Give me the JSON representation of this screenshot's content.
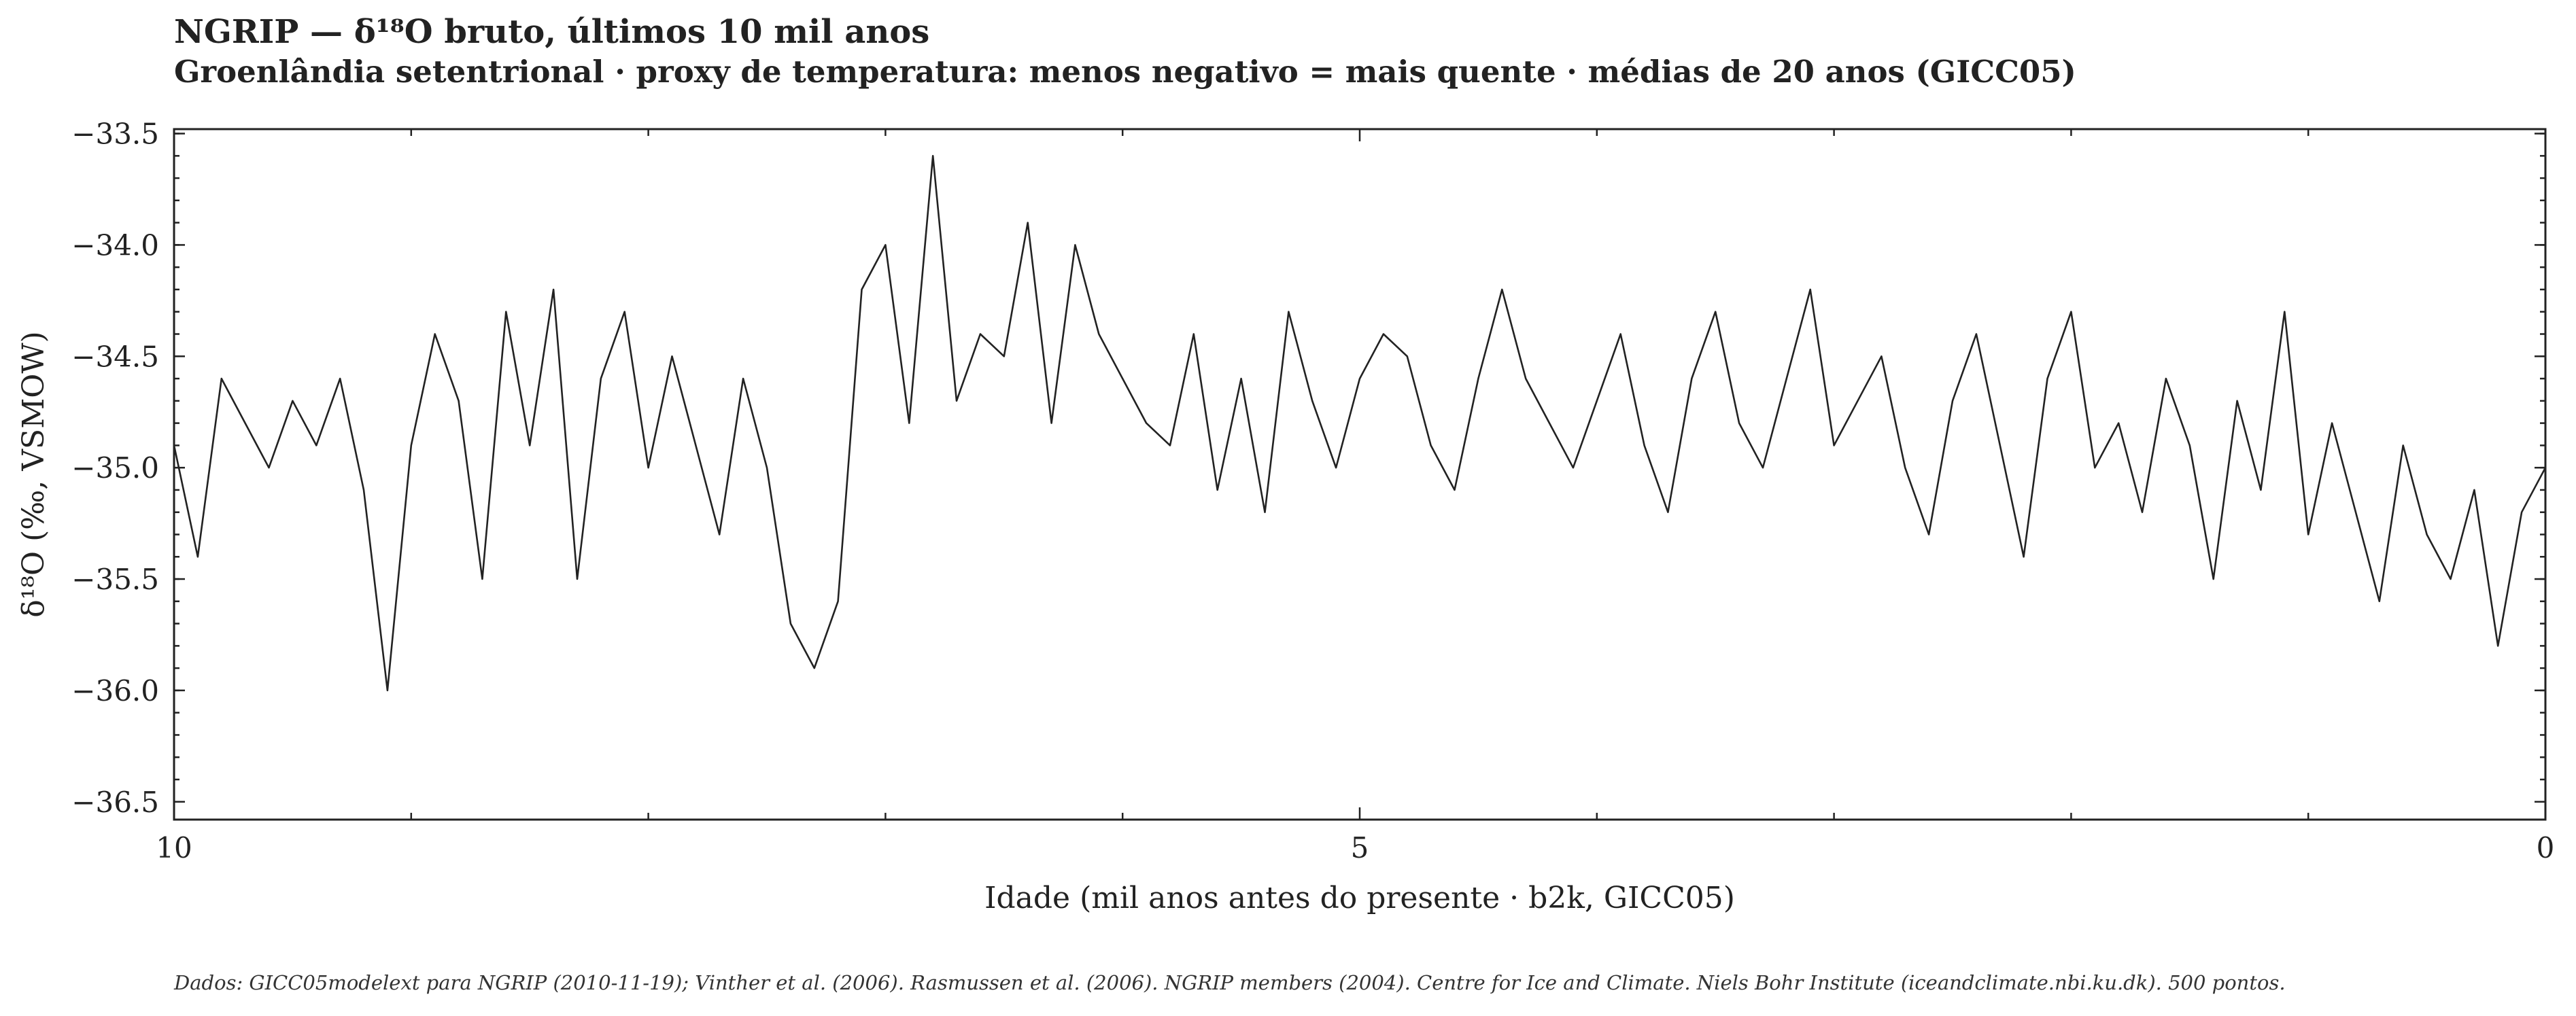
{
  "chart_data": {
    "type": "line",
    "title": "NGRIP — δ¹⁸O bruto, últimos 10 mil anos",
    "subtitle": "Groenlândia setentrional · proxy de temperatura: menos negativo = mais quente · médias de 20 anos (GICC05)",
    "xlabel": "Idade (mil anos antes do presente · b2k, GICC05)",
    "ylabel": "δ¹⁸O (‰, VSMOW)",
    "xlim": [
      10,
      0
    ],
    "ylim": [
      -36.58,
      -33.48
    ],
    "x_ticks": [
      10,
      5,
      0
    ],
    "x_tick_labels": [
      "10",
      "5",
      "0"
    ],
    "y_ticks": [
      -33.5,
      -34.0,
      -34.5,
      -35.0,
      -35.5,
      -36.0,
      -36.5
    ],
    "y_tick_labels": [
      "−33.5",
      "−34.0",
      "−34.5",
      "−35.0",
      "−35.5",
      "−36.0",
      "−36.5"
    ],
    "grid": false,
    "line_color": "#222222",
    "series": [
      {
        "x": [
          10.0,
          9.9,
          9.8,
          9.7,
          9.6,
          9.5,
          9.4,
          9.3,
          9.2,
          9.1,
          9.0,
          8.9,
          8.8,
          8.7,
          8.6,
          8.5,
          8.4,
          8.3,
          8.2,
          8.1,
          8.0,
          7.9,
          7.8,
          7.7,
          7.6,
          7.5,
          7.4,
          7.3,
          7.2,
          7.1,
          7.0,
          6.9,
          6.8,
          6.7,
          6.6,
          6.5,
          6.4,
          6.3,
          6.2,
          6.1,
          6.0,
          5.9,
          5.8,
          5.7,
          5.6,
          5.5,
          5.4,
          5.3,
          5.2,
          5.1,
          5.0,
          4.9,
          4.8,
          4.7,
          4.6,
          4.5,
          4.4,
          4.3,
          4.2,
          4.1,
          4.0,
          3.9,
          3.8,
          3.7,
          3.6,
          3.5,
          3.4,
          3.3,
          3.2,
          3.1,
          3.0,
          2.9,
          2.8,
          2.7,
          2.6,
          2.5,
          2.4,
          2.3,
          2.2,
          2.1,
          2.0,
          1.9,
          1.8,
          1.7,
          1.6,
          1.5,
          1.4,
          1.3,
          1.2,
          1.1,
          1.0,
          0.9,
          0.8,
          0.7,
          0.6,
          0.5,
          0.4,
          0.3,
          0.2,
          0.1,
          0.0
        ],
        "values": [
          -34.9,
          -35.4,
          -34.6,
          -34.8,
          -35.0,
          -34.7,
          -34.9,
          -34.6,
          -35.1,
          -36.0,
          -34.9,
          -34.4,
          -34.7,
          -35.5,
          -34.3,
          -34.9,
          -34.2,
          -35.5,
          -34.6,
          -34.3,
          -35.0,
          -34.5,
          -34.9,
          -35.3,
          -34.6,
          -35.0,
          -35.7,
          -35.9,
          -35.6,
          -34.2,
          -34.0,
          -34.8,
          -33.6,
          -34.7,
          -34.4,
          -34.5,
          -33.9,
          -34.8,
          -34.0,
          -34.4,
          -34.6,
          -34.8,
          -34.9,
          -34.4,
          -35.1,
          -34.6,
          -35.2,
          -34.3,
          -34.7,
          -35.0,
          -34.6,
          -34.4,
          -34.5,
          -34.9,
          -35.1,
          -34.6,
          -34.2,
          -34.6,
          -34.8,
          -35.0,
          -34.7,
          -34.4,
          -34.9,
          -35.2,
          -34.6,
          -34.3,
          -34.8,
          -35.0,
          -34.6,
          -34.2,
          -34.9,
          -34.7,
          -34.5,
          -35.0,
          -35.3,
          -34.7,
          -34.4,
          -34.9,
          -35.4,
          -34.6,
          -34.3,
          -35.0,
          -34.8,
          -35.2,
          -34.6,
          -34.9,
          -35.5,
          -34.7,
          -35.1,
          -34.3,
          -35.3,
          -34.8,
          -35.2,
          -35.6,
          -34.9,
          -35.3,
          -35.5,
          -35.1,
          -35.8,
          -35.2,
          -35.0
        ]
      }
    ]
  },
  "footer": {
    "source": "Dados: GICC05modelext para NGRIP (2010-11-19); Vinther et al. (2006). Rasmussen et al. (2006). NGRIP members (2004). Centre for Ice and Climate. Niels Bohr Institute (iceandclimate.nbi.ku.dk). 500 pontos."
  }
}
